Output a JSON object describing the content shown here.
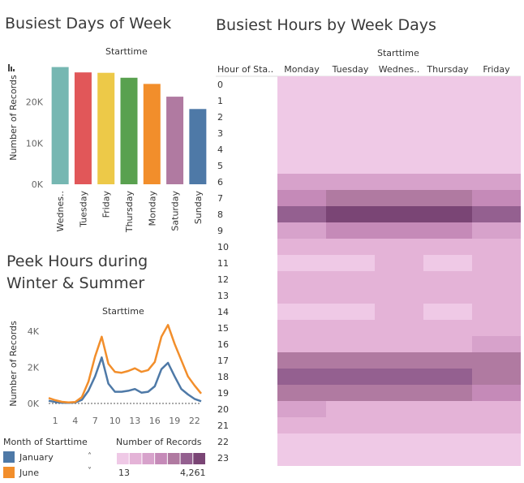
{
  "titles": {
    "days": "Busiest Days of Week",
    "hours": "Busiest Hours by Week Days",
    "peek_line1": "Peek Hours during",
    "peek_line2": "Winter & Summer"
  },
  "colors": {
    "january": "#4e79a7",
    "june": "#f28e2b"
  },
  "chart_data": [
    {
      "type": "bar",
      "title": "Busiest Days of Week",
      "column_header": "Starttime",
      "ylabel": "Number of Records",
      "categories": [
        "Wednes..",
        "Tuesday",
        "Friday",
        "Thursday",
        "Monday",
        "Saturday",
        "Sunday"
      ],
      "values": [
        28500,
        27200,
        27100,
        25900,
        24400,
        21300,
        18300
      ],
      "colors": [
        "#76b7b2",
        "#e15759",
        "#edc948",
        "#59a14f",
        "#f28e2b",
        "#b07aa1",
        "#4e79a7"
      ],
      "ylim": [
        0,
        30000
      ],
      "yticks": [
        {
          "v": 0,
          "label": "0K"
        },
        {
          "v": 10000,
          "label": "10K"
        },
        {
          "v": 20000,
          "label": "20K"
        }
      ]
    },
    {
      "type": "line",
      "title": "Peek Hours during Winter & Summer",
      "column_header": "Starttime",
      "ylabel": "Number of Records",
      "x": [
        0,
        1,
        2,
        3,
        4,
        5,
        6,
        7,
        8,
        9,
        10,
        11,
        12,
        13,
        14,
        15,
        16,
        17,
        18,
        19,
        20,
        21,
        22,
        23
      ],
      "xticks": [
        1,
        4,
        7,
        10,
        13,
        16,
        19,
        22
      ],
      "ylim": [
        0,
        4500
      ],
      "yticks": [
        {
          "v": 0,
          "label": "0K"
        },
        {
          "v": 2000,
          "label": "2K"
        },
        {
          "v": 4000,
          "label": "4K"
        }
      ],
      "series": [
        {
          "name": "January",
          "color": "#4e79a7",
          "values": [
            150,
            80,
            40,
            30,
            50,
            200,
            700,
            1500,
            2550,
            1100,
            650,
            650,
            700,
            800,
            600,
            650,
            950,
            1900,
            2250,
            1500,
            800,
            500,
            250,
            120
          ]
        },
        {
          "name": "June",
          "color": "#f28e2b",
          "values": [
            300,
            180,
            90,
            60,
            80,
            350,
            1200,
            2600,
            3700,
            2200,
            1750,
            1700,
            1800,
            1950,
            1750,
            1850,
            2300,
            3700,
            4350,
            3300,
            2400,
            1500,
            1000,
            550
          ]
        }
      ]
    },
    {
      "type": "heatmap",
      "title": "Busiest Hours by Week Days",
      "column_header": "Starttime",
      "row_header": "Hour of Sta..",
      "columns": [
        "Monday",
        "Tuesday",
        "Wednes..",
        "Thursday",
        "Friday"
      ],
      "rows": [
        "0",
        "1",
        "2",
        "3",
        "4",
        "5",
        "6",
        "7",
        "8",
        "9",
        "10",
        "11",
        "12",
        "13",
        "14",
        "15",
        "16",
        "17",
        "18",
        "19",
        "20",
        "21",
        "22",
        "23"
      ],
      "values": [
        [
          13,
          13,
          13,
          13,
          13
        ],
        [
          13,
          13,
          13,
          13,
          13
        ],
        [
          13,
          13,
          13,
          13,
          13
        ],
        [
          13,
          13,
          13,
          13,
          13
        ],
        [
          13,
          13,
          13,
          13,
          13
        ],
        [
          13,
          13,
          13,
          13,
          13
        ],
        [
          1100,
          1100,
          1100,
          1100,
          1100
        ],
        [
          2400,
          3100,
          3100,
          3100,
          2400
        ],
        [
          3700,
          4261,
          4261,
          4261,
          3400
        ],
        [
          1300,
          2000,
          2000,
          2000,
          1700
        ],
        [
          1000,
          1000,
          1000,
          1000,
          1000
        ],
        [
          300,
          300,
          1000,
          300,
          1000
        ],
        [
          1000,
          1000,
          1000,
          1000,
          1000
        ],
        [
          1000,
          1000,
          1000,
          1000,
          1000
        ],
        [
          300,
          300,
          1000,
          300,
          1000
        ],
        [
          1000,
          1000,
          1000,
          1000,
          1000
        ],
        [
          1000,
          1000,
          1000,
          1000,
          1600
        ],
        [
          2900,
          2900,
          2900,
          2900,
          2900
        ],
        [
          3800,
          3800,
          3800,
          3800,
          3100
        ],
        [
          2600,
          2600,
          2600,
          2600,
          2000
        ],
        [
          1700,
          1000,
          1000,
          1000,
          1000
        ],
        [
          1000,
          1000,
          1000,
          1000,
          1000
        ],
        [
          300,
          300,
          300,
          300,
          300
        ],
        [
          300,
          300,
          300,
          300,
          300
        ]
      ],
      "color_scale": [
        "#efc9e6",
        "#e4b3d7",
        "#d7a2cb",
        "#c58ab8",
        "#b07aa1",
        "#946090",
        "#7a4575"
      ]
    }
  ],
  "legend": {
    "month_title": "Month of Starttime",
    "months": [
      {
        "name": "January",
        "color": "#4e79a7"
      },
      {
        "name": "June",
        "color": "#f28e2b"
      }
    ],
    "records_title": "Number of Records",
    "records_min": "13",
    "records_max": "4,261"
  },
  "icons": {
    "sort": "sort-icon",
    "dropdown": "chevron-down-icon"
  }
}
